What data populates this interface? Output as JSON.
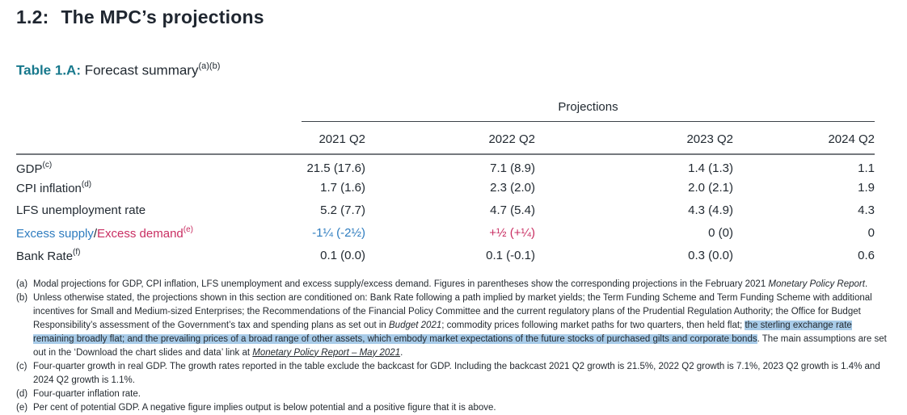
{
  "page": {
    "section_number": "1.2:",
    "section_title": "The MPC’s projections",
    "table_label": "Table 1.A:",
    "table_caption": "Forecast summary",
    "table_caption_sup": "(a)(b)"
  },
  "colors": {
    "teal_label": "#17788c",
    "supply_blue": "#2e7cbf",
    "demand_pink": "#c92e62",
    "selection_highlight": "#a9cce9"
  },
  "table": {
    "group_header": "Projections",
    "columns": [
      "2021 Q2",
      "2022 Q2",
      "2023 Q2",
      "2024 Q2"
    ],
    "rows": [
      {
        "label": "GDP",
        "sup": "(c)",
        "values": [
          "21.5 (17.6)",
          "7.1 (8.9)",
          "1.4 (1.3)",
          "1.1"
        ]
      },
      {
        "label": "CPI inflation",
        "sup": "(d)",
        "values": [
          "1.7 (1.6)",
          "2.3 (2.0)",
          "2.0 (2.1)",
          "1.9"
        ]
      },
      {
        "label": "LFS unemployment rate",
        "sup": "",
        "values": [
          "5.2 (7.7)",
          "4.7 (5.4)",
          "4.3 (4.9)",
          "4.3"
        ]
      },
      {
        "label_supply": "Excess supply",
        "label_slash": "/",
        "label_demand": "Excess demand",
        "sup": "(e)",
        "values": [
          "-1¼ (-2½)",
          "+½ (+¼)",
          "0 (0)",
          "0"
        ]
      },
      {
        "label": "Bank Rate",
        "sup": "(f)",
        "values": [
          "0.1 (0.0)",
          "0.1 (-0.1)",
          "0.3 (0.0)",
          "0.6"
        ]
      }
    ]
  },
  "footnotes": {
    "a": {
      "marker": "(a)",
      "pre": "Modal projections for GDP, CPI inflation, LFS unemployment and excess supply/excess demand. Figures in parentheses show the corresponding projections in the February 2021 ",
      "italic": "Monetary Policy Report",
      "post": "."
    },
    "b": {
      "marker": "(b)",
      "s1": "Unless otherwise stated, the projections shown in this section are conditioned on: Bank Rate following a path implied by market yields; the Term Funding Scheme and Term Funding Scheme with additional incentives for Small and Medium-sized Enterprises; the Recommendations of the Financial Policy Committee and the current regulatory plans of the Prudential Regulation Authority; the Office for Budget Responsibility’s assessment of the Government’s tax and spending plans as set out in ",
      "budget_italic": "Budget 2021",
      "s2": "; commodity prices following market paths for two quarters, then held flat; ",
      "highlighted": "the sterling exchange rate remaining broadly flat; and the prevailing prices of a broad range of other assets, which embody market expectations of the future stocks of purchased gilts and corporate bonds",
      "s3": ". The main assumptions are set out in the ‘Download the chart slides and data’ link at ",
      "link": "Monetary Policy Report – May 2021",
      "s4": "."
    },
    "c": {
      "marker": "(c)",
      "text": "Four-quarter growth in real GDP. The growth rates reported in the table exclude the backcast for GDP. Including the backcast 2021 Q2 growth is 21.5%, 2022 Q2 growth is 7.1%, 2023 Q2 growth is 1.4% and 2024 Q2 growth is 1.1%."
    },
    "d": {
      "marker": "(d)",
      "text": "Four-quarter inflation rate."
    },
    "e": {
      "marker": "(e)",
      "text": "Per cent of potential GDP. A negative figure implies output is below potential and a positive figure that it is above."
    }
  }
}
